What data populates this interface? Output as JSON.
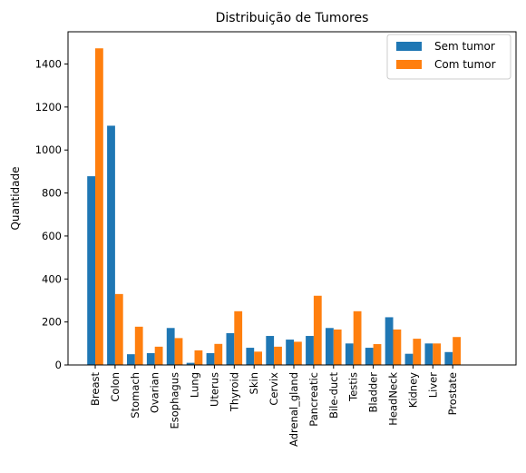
{
  "chart_data": {
    "type": "bar",
    "title": "Distribuição de Tumores",
    "xlabel": "",
    "ylabel": "Quantidade",
    "ylim": [
      0,
      1550
    ],
    "yticks": [
      0,
      200,
      400,
      600,
      800,
      1000,
      1200,
      1400
    ],
    "categories": [
      "Breast",
      "Colon",
      "Stomach",
      "Ovarian",
      "Esophagus",
      "Lung",
      "Uterus",
      "Thyroid",
      "Skin",
      "Cervix",
      "Adrenal_gland",
      "Pancreatic",
      "Bile-duct",
      "Testis",
      "Bladder",
      "HeadNeck",
      "Kidney",
      "Liver",
      "Prostate"
    ],
    "series": [
      {
        "name": "Sem tumor",
        "color": "#1f77b4",
        "values": [
          878,
          1113,
          50,
          55,
          172,
          10,
          55,
          148,
          80,
          135,
          118,
          135,
          172,
          100,
          80,
          222,
          52,
          100,
          60
        ]
      },
      {
        "name": "Com tumor",
        "color": "#ff7f0e",
        "values": [
          1473,
          330,
          178,
          85,
          125,
          68,
          98,
          250,
          62,
          85,
          108,
          322,
          165,
          250,
          97,
          165,
          122,
          100,
          130
        ]
      }
    ],
    "legend_position": "top-right",
    "grid": false
  }
}
